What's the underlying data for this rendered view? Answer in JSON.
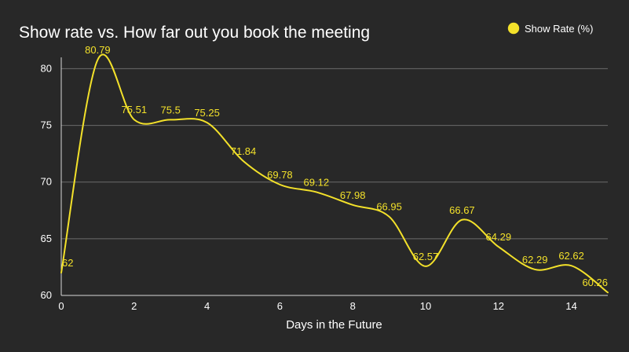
{
  "colors": {
    "background": "#282828",
    "series": "#f3e12a",
    "text": "#ffffff",
    "gridline": "#6b6b6b",
    "axis": "#d8d8d8"
  },
  "chart_data": {
    "type": "line",
    "title": "Show rate vs. How far out you book the meeting",
    "xlabel": "Days in the Future",
    "ylabel": "",
    "xlim": [
      0,
      15
    ],
    "ylim": [
      60,
      81
    ],
    "grid": true,
    "legend_position": "top-right",
    "xticks": [
      0,
      2,
      4,
      6,
      8,
      10,
      12,
      14
    ],
    "yticks": [
      60,
      65,
      70,
      75,
      80
    ],
    "series": [
      {
        "name": "Show Rate (%)",
        "color": "#f3e12a",
        "smooth": true,
        "x": [
          0,
          1,
          2,
          3,
          4,
          5,
          6,
          7,
          8,
          9,
          10,
          11,
          12,
          13,
          14,
          15
        ],
        "values": [
          62,
          80.79,
          75.51,
          75.5,
          75.25,
          71.84,
          69.78,
          69.12,
          67.98,
          66.95,
          62.57,
          66.67,
          64.29,
          62.29,
          62.62,
          60.26
        ],
        "labels": [
          "62",
          "80.79",
          "75.51",
          "75.5",
          "75.25",
          "71.84",
          "69.78",
          "69.12",
          "67.98",
          "66.95",
          "62.57",
          "66.67",
          "64.29",
          "62.29",
          "62.62",
          "60.26"
        ]
      }
    ]
  }
}
